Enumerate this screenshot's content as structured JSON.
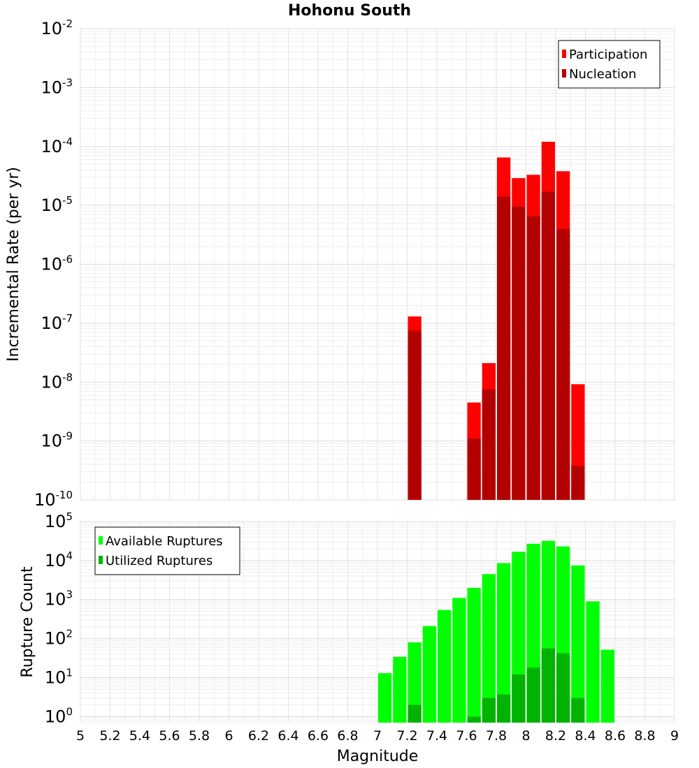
{
  "chart_data": [
    {
      "type": "bar",
      "title": "Hohonu South",
      "ylabel": "Incremental Rate (per yr)",
      "xlabel": "",
      "xlim": [
        5,
        9
      ],
      "ylim": [
        1e-10,
        0.01
      ],
      "yscale": "log",
      "y_tick_exponents": [
        "-10",
        "-9",
        "-8",
        "-7",
        "-6",
        "-5",
        "-4",
        "-3",
        "-2"
      ],
      "y_tick_base": "10",
      "grid": true,
      "legend_position": "top-right",
      "colors": {
        "Participation": "#ff0000",
        "Nucleation": "#b30000"
      },
      "series": [
        {
          "name": "Participation",
          "x": [
            7.25,
            7.65,
            7.75,
            7.85,
            7.95,
            8.05,
            8.15,
            8.25,
            8.35
          ],
          "values": [
            1.3e-07,
            4.5e-09,
            2.1e-08,
            6.5e-05,
            2.9e-05,
            3.3e-05,
            0.00012,
            3.8e-05,
            9.2e-09
          ]
        },
        {
          "name": "Nucleation",
          "x": [
            7.25,
            7.65,
            7.75,
            7.85,
            7.95,
            8.05,
            8.15,
            8.25,
            8.35
          ],
          "values": [
            7.5e-08,
            1.1e-09,
            7.5e-09,
            1.4e-05,
            9.5e-06,
            6.5e-06,
            1.7e-05,
            4e-06,
            3.8e-10
          ]
        }
      ]
    },
    {
      "type": "bar",
      "title": "",
      "ylabel": "Rupture Count",
      "xlabel": "Magnitude",
      "xlim": [
        5,
        9
      ],
      "ylim": [
        0.7,
        100000.0
      ],
      "yscale": "log",
      "y_tick_exponents": [
        "0",
        "1",
        "2",
        "3",
        "4",
        "5"
      ],
      "y_tick_base": "10",
      "x_ticks": [
        "5",
        "5.2",
        "5.4",
        "5.6",
        "5.8",
        "6",
        "6.2",
        "6.4",
        "6.6",
        "6.8",
        "7",
        "7.2",
        "7.4",
        "7.6",
        "7.8",
        "8",
        "8.2",
        "8.4",
        "8.6",
        "8.8",
        "9"
      ],
      "grid": true,
      "legend_position": "top-left",
      "colors": {
        "Available Ruptures": "#00ff00",
        "Utilized Ruptures": "#00b300"
      },
      "series": [
        {
          "name": "Available Ruptures",
          "x": [
            7.05,
            7.15,
            7.25,
            7.35,
            7.45,
            7.55,
            7.65,
            7.75,
            7.85,
            7.95,
            8.05,
            8.15,
            8.25,
            8.35,
            8.45,
            8.55
          ],
          "values": [
            13,
            34,
            80,
            210,
            540,
            1100,
            2000,
            4500,
            8600,
            16800,
            27000,
            32000,
            23000,
            7500,
            900,
            52
          ]
        },
        {
          "name": "Utilized Ruptures",
          "x": [
            7.25,
            7.65,
            7.75,
            7.85,
            7.95,
            8.05,
            8.15,
            8.25,
            8.35
          ],
          "values": [
            2,
            1,
            3,
            3.7,
            12,
            18,
            56,
            42,
            3
          ]
        }
      ]
    }
  ]
}
